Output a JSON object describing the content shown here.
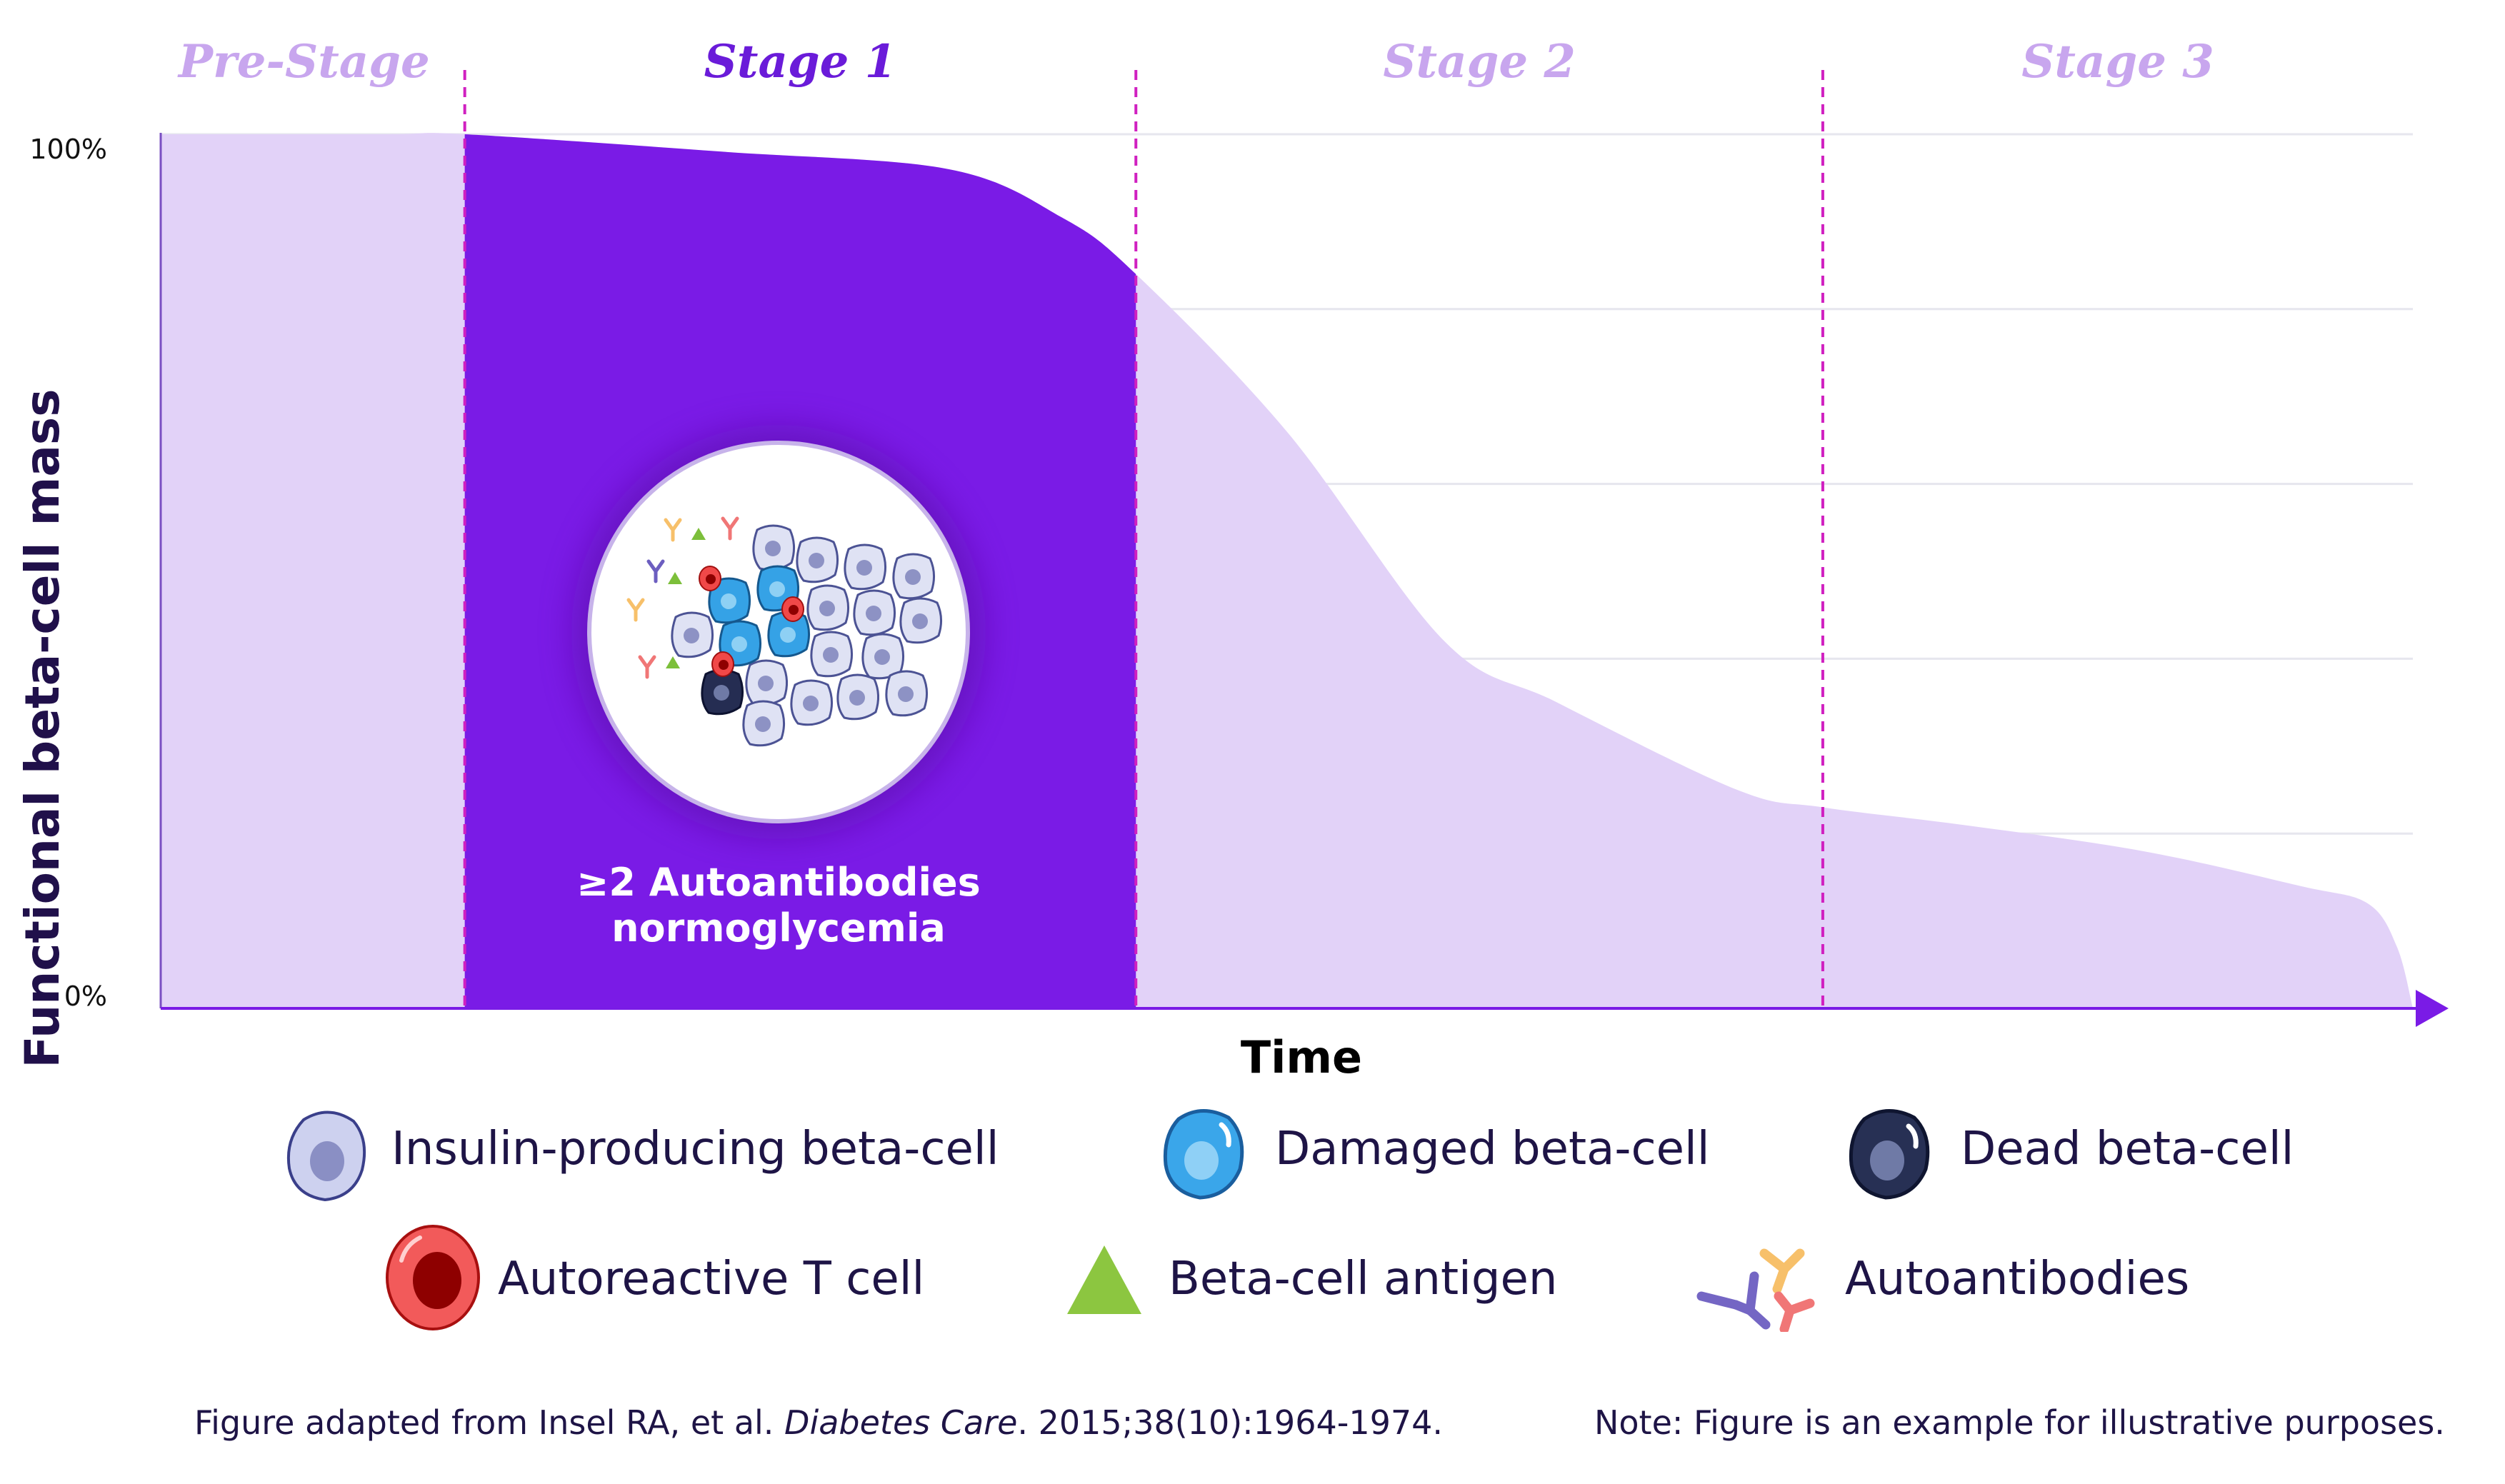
{
  "chart_data": {
    "type": "area",
    "xlabel": "Time",
    "ylabel": "Functional beta-cell mass",
    "y_ticks": [
      "100%",
      "0%"
    ],
    "ylim": [
      0,
      100
    ],
    "xlim": [
      0,
      100
    ],
    "grid": true,
    "stages": [
      {
        "label": "Pre-Stage",
        "start": 0,
        "end": 13.5,
        "highlighted": false
      },
      {
        "label": "Stage 1",
        "start": 13.5,
        "end": 43.3,
        "highlighted": true
      },
      {
        "label": "Stage 2",
        "start": 43.3,
        "end": 73.8,
        "highlighted": false
      },
      {
        "label": "Stage 3",
        "start": 73.8,
        "end": 100,
        "highlighted": false
      }
    ],
    "series": [
      {
        "x": [
          0,
          10,
          13.5,
          25,
          35,
          40,
          43.3,
          50,
          57,
          62,
          70,
          73.8,
          80,
          88,
          95,
          98,
          99.3,
          100
        ],
        "values": [
          100,
          100,
          100,
          98,
          96,
          90.5,
          84,
          66,
          42,
          35,
          25,
          23,
          21,
          18,
          14,
          12,
          7,
          0
        ]
      }
    ],
    "annotation": {
      "line1": "≥2 Autoantibodies",
      "line2": "normoglycemia"
    }
  },
  "colors": {
    "light_fill": "#e2d2f8",
    "dark_fill": "#7a1be6",
    "stage_inactive": "#c8a6ee",
    "stage_active": "#6a1bd9",
    "divider": "#d020c0",
    "axis": "#7a1be6",
    "grid": "#e6e6ee"
  },
  "legend": [
    {
      "label": "Insulin-producing beta-cell",
      "icon": "beta-cell-icon"
    },
    {
      "label": "Damaged beta-cell",
      "icon": "damaged-beta-cell-icon"
    },
    {
      "label": "Dead beta-cell",
      "icon": "dead-beta-cell-icon"
    },
    {
      "label": "Autoreactive T cell",
      "icon": "t-cell-icon"
    },
    {
      "label": "Beta-cell antigen",
      "icon": "antigen-icon"
    },
    {
      "label": "Autoantibodies",
      "icon": "autoantibodies-icon"
    }
  ],
  "footer": {
    "citation_prefix": "Figure adapted from Insel RA, et al. ",
    "citation_journal": "Diabetes Care",
    "citation_suffix": ". 2015;38(10):1964-1974.",
    "note": "Note: Figure is an example for illustrative purposes."
  }
}
